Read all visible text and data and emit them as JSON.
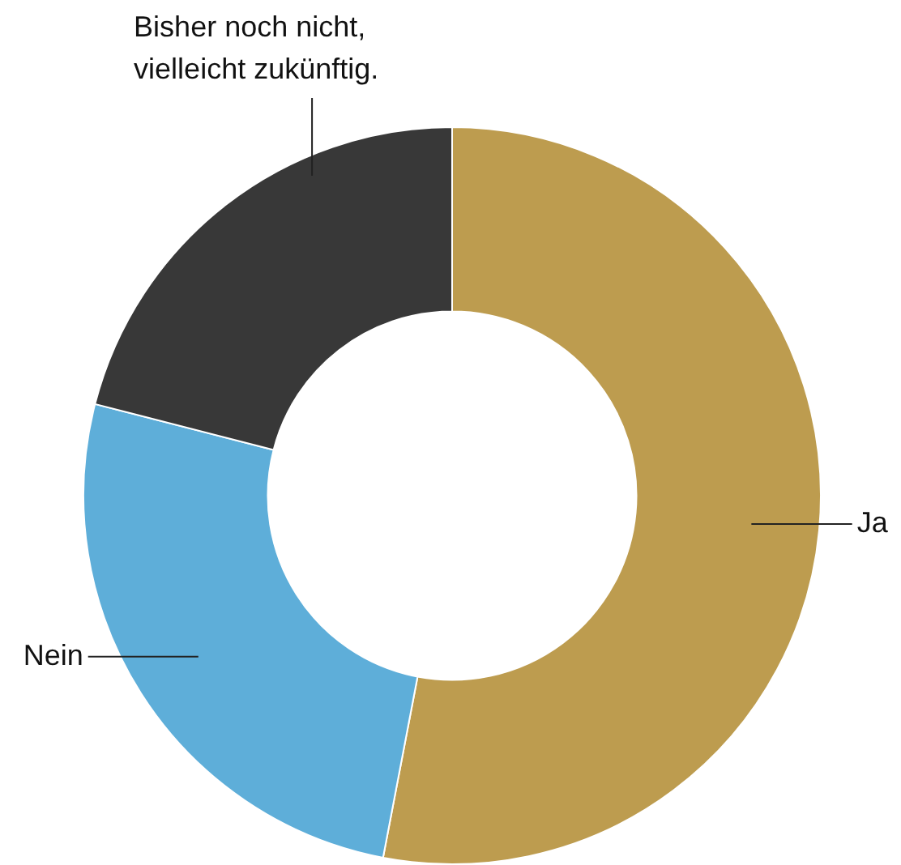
{
  "chart_data": {
    "type": "donut",
    "categories": [
      "Ja",
      "Nein",
      "Bisher noch nicht, vielleicht zukünftig."
    ],
    "values": [
      53,
      26,
      21
    ],
    "colors": [
      "#bd9c4f",
      "#5eaed9",
      "#383838"
    ],
    "legend": false
  }
}
